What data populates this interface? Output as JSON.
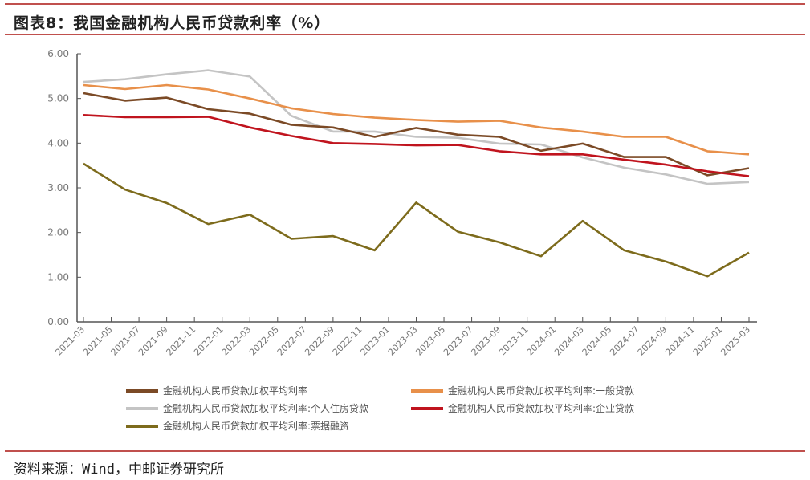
{
  "header": {
    "title": "图表8：我国金融机构人民币贷款利率（%）"
  },
  "footer": {
    "source": "资料来源：Wind，中邮证券研究所"
  },
  "legend": [
    {
      "label": "金融机构人民币贷款加权平均利率",
      "color": "#7b4a26"
    },
    {
      "label": "金融机构人民币贷款加权平均利率:一般贷款",
      "color": "#e8904a"
    },
    {
      "label": "金融机构人民币贷款加权平均利率:个人住房贷款",
      "color": "#c4c4c4"
    },
    {
      "label": "金融机构人民币贷款加权平均利率:企业贷款",
      "color": "#c0141e"
    },
    {
      "label": "金融机构人民币贷款加权平均利率:票据融资",
      "color": "#7d6b1c"
    }
  ],
  "chart_data": {
    "type": "line",
    "title": "图表8：我国金融机构人民币贷款利率（%）",
    "xlabel": "",
    "ylabel": "",
    "ylim": [
      0,
      6
    ],
    "yticks": [
      "0.00",
      "1.00",
      "2.00",
      "3.00",
      "4.00",
      "5.00",
      "6.00"
    ],
    "xtick_labels": [
      "2021-03",
      "2021-05",
      "2021-07",
      "2021-09",
      "2021-11",
      "2022-01",
      "2022-03",
      "2022-05",
      "2022-07",
      "2022-09",
      "2022-11",
      "2023-01",
      "2023-03",
      "2023-05",
      "2023-07",
      "2023-09",
      "2023-11",
      "2024-01",
      "2024-03",
      "2024-05",
      "2024-07",
      "2024-09",
      "2024-11",
      "2025-01",
      "2025-03"
    ],
    "x": [
      "2021-03",
      "2021-06",
      "2021-09",
      "2021-12",
      "2022-03",
      "2022-06",
      "2022-09",
      "2022-12",
      "2023-03",
      "2023-06",
      "2023-09",
      "2023-12",
      "2024-03",
      "2024-06",
      "2024-09",
      "2024-12",
      "2025-03"
    ],
    "grid": false,
    "legend_position": "bottom",
    "series": [
      {
        "name": "金融机构人民币贷款加权平均利率",
        "color": "#7b4a26",
        "values": [
          5.12,
          4.95,
          5.02,
          4.76,
          4.66,
          4.41,
          4.35,
          4.14,
          4.34,
          4.19,
          4.14,
          3.83,
          3.99,
          3.69,
          3.69,
          3.28,
          3.44
        ]
      },
      {
        "name": "金融机构人民币贷款加权平均利率:一般贷款",
        "color": "#e8904a",
        "values": [
          5.3,
          5.21,
          5.3,
          5.2,
          5.0,
          4.78,
          4.65,
          4.57,
          4.52,
          4.48,
          4.5,
          4.35,
          4.26,
          4.14,
          4.14,
          3.82,
          3.75
        ]
      },
      {
        "name": "金融机构人民币贷款加权平均利率:个人住房贷款",
        "color": "#c4c4c4",
        "values": [
          5.37,
          5.43,
          5.54,
          5.63,
          5.49,
          4.61,
          4.26,
          4.26,
          4.14,
          4.12,
          3.99,
          3.97,
          3.68,
          3.45,
          3.3,
          3.09,
          3.13
        ]
      },
      {
        "name": "金融机构人民币贷款加权平均利率:企业贷款",
        "color": "#c0141e",
        "values": [
          4.63,
          4.58,
          4.58,
          4.59,
          4.35,
          4.16,
          4.0,
          3.98,
          3.95,
          3.96,
          3.82,
          3.75,
          3.75,
          3.63,
          3.52,
          3.37,
          3.26
        ]
      },
      {
        "name": "金融机构人民币贷款加权平均利率:票据融资",
        "color": "#7d6b1c",
        "values": [
          3.54,
          2.96,
          2.66,
          2.19,
          2.4,
          1.86,
          1.92,
          1.6,
          2.67,
          2.02,
          1.78,
          1.47,
          2.26,
          1.6,
          1.35,
          1.02,
          1.55
        ]
      }
    ]
  }
}
